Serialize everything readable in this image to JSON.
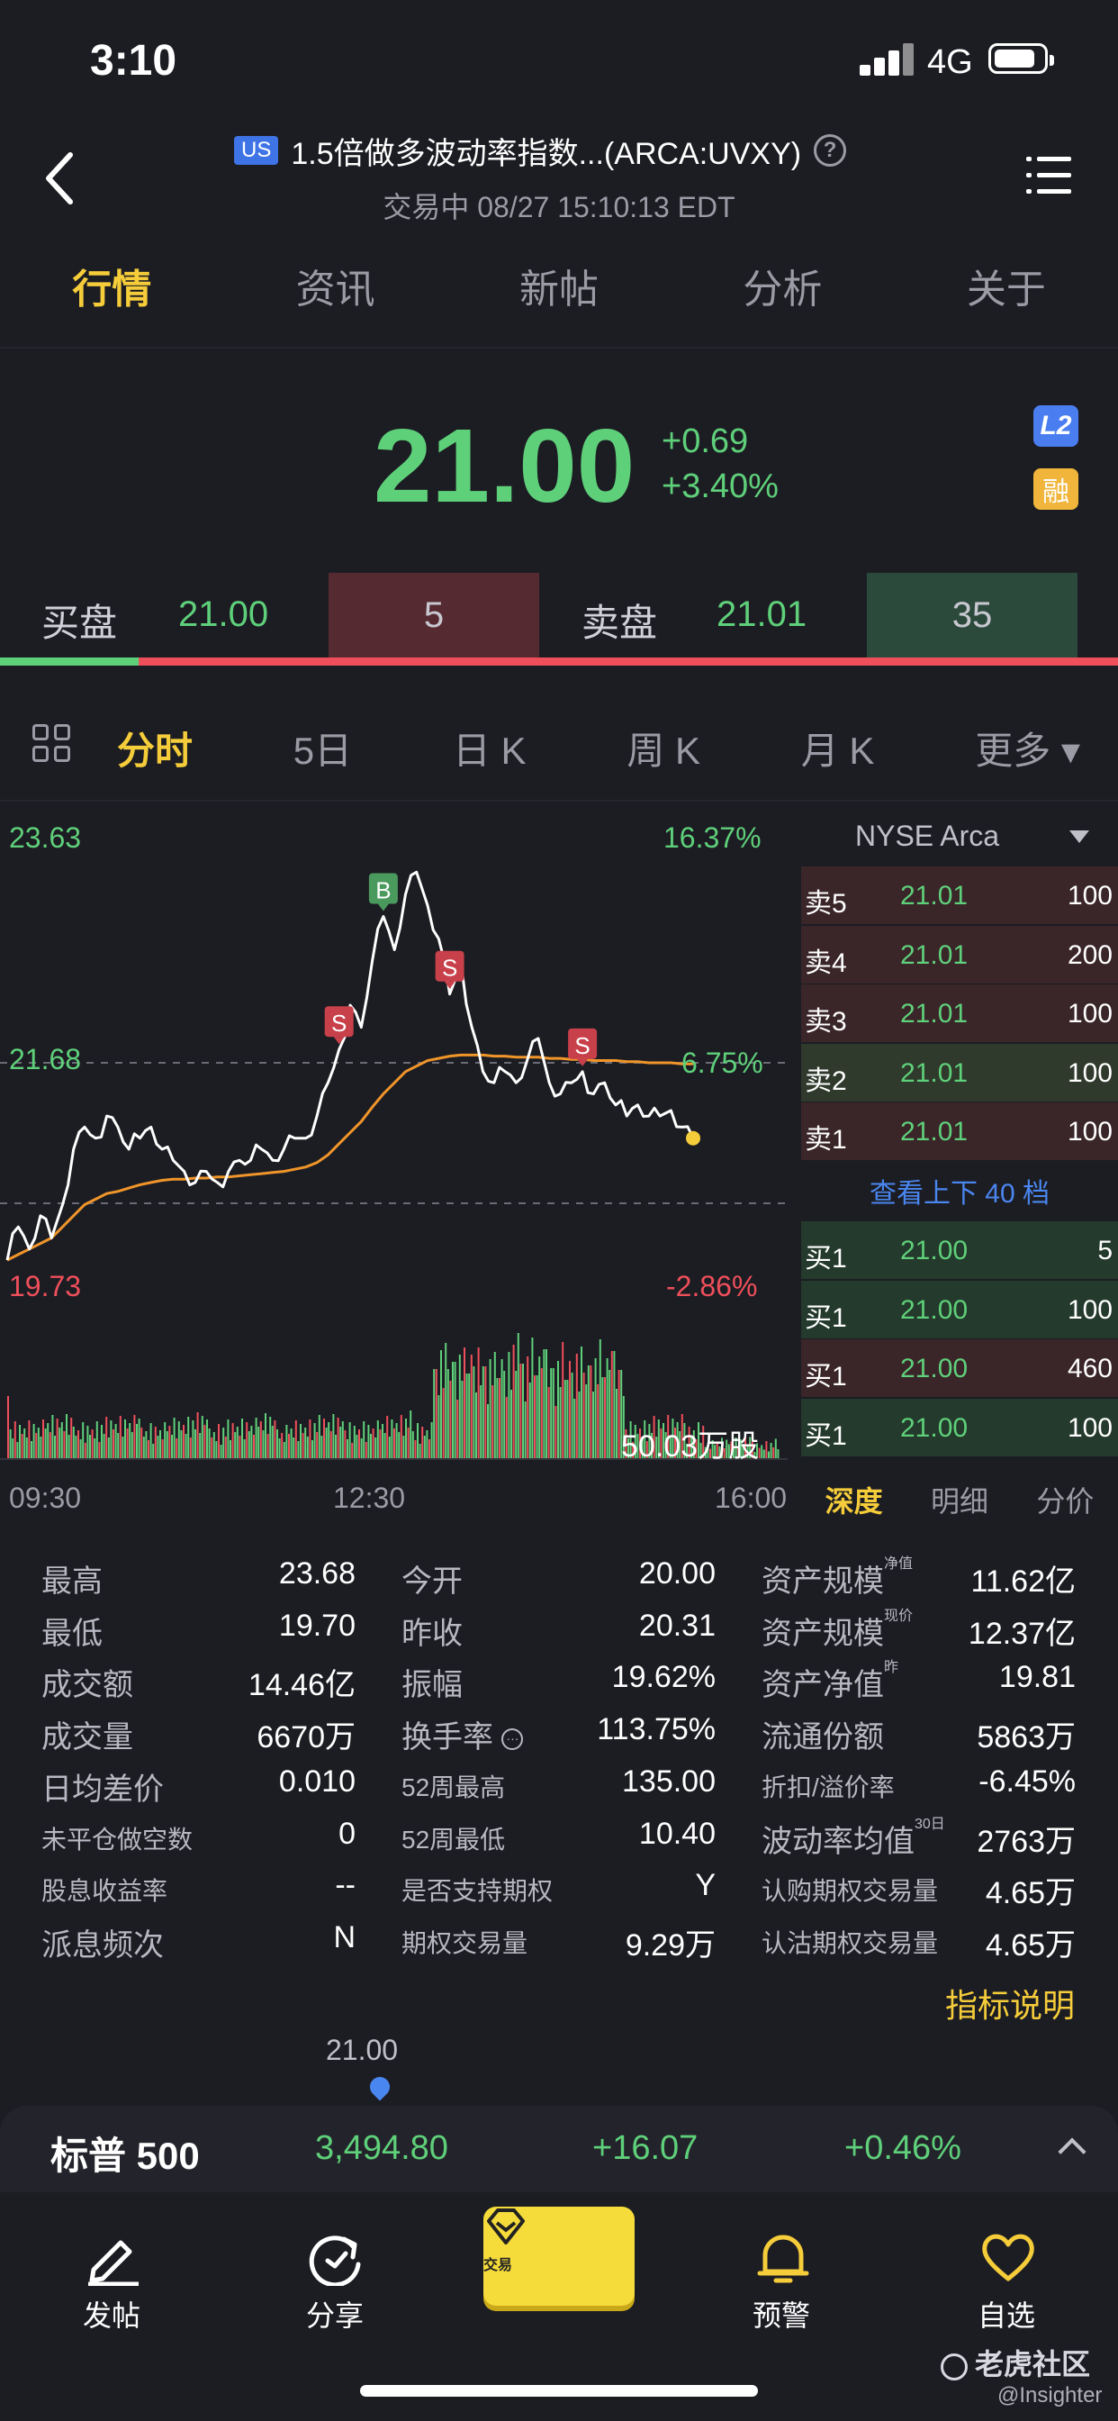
{
  "status_bar": {
    "time": "3:10",
    "network": "4G"
  },
  "header": {
    "market_badge": "US",
    "title": "1.5倍做多波动率指数...(ARCA:UVXY)",
    "subtitle": "交易中 08/27 15:10:13 EDT"
  },
  "tabs": [
    {
      "label": "行情",
      "active": true
    },
    {
      "label": "资讯",
      "active": false
    },
    {
      "label": "新帖",
      "active": false
    },
    {
      "label": "分析",
      "active": false
    },
    {
      "label": "关于",
      "active": false
    }
  ],
  "quote": {
    "price": "21.00",
    "change": "+0.69",
    "change_pct": "+3.40%",
    "badge_l2": "L2",
    "badge_margin": "融"
  },
  "bid_ask": {
    "bid_label": "买盘",
    "bid_price": "21.00",
    "bid_qty": "5",
    "ask_label": "卖盘",
    "ask_price": "21.01",
    "ask_qty": "35",
    "bid_ratio": 0.124
  },
  "chart_tabs": [
    {
      "label": "分时",
      "active": true
    },
    {
      "label": "5日",
      "active": false
    },
    {
      "label": "日 K",
      "active": false
    },
    {
      "label": "周 K",
      "active": false
    },
    {
      "label": "月 K",
      "active": false
    },
    {
      "label": "更多 ▾",
      "active": false
    }
  ],
  "chart_data": {
    "type": "line",
    "ylim": [
      19.73,
      23.63
    ],
    "y_labels": {
      "high": "23.63",
      "mid": "21.68",
      "low": "19.73"
    },
    "pct_labels": {
      "high": "16.37%",
      "mid": "6.75%",
      "low": "-2.86%"
    },
    "x_labels": [
      "09:30",
      "12:30",
      "16:00"
    ],
    "volume_label": "50.03万股",
    "price_series": [
      19.9,
      20.2,
      20.0,
      20.3,
      20.1,
      20.4,
      20.9,
      21.1,
      21.0,
      21.2,
      21.1,
      20.9,
      21.0,
      21.1,
      20.9,
      20.8,
      20.7,
      20.6,
      20.7,
      20.6,
      20.7,
      20.8,
      20.8,
      20.9,
      20.8,
      20.9,
      21.0,
      21.0,
      21.2,
      21.5,
      21.8,
      22.2,
      22.0,
      22.6,
      23.0,
      22.7,
      23.2,
      23.4,
      23.1,
      22.8,
      22.3,
      22.6,
      22.0,
      21.6,
      21.5,
      21.6,
      21.5,
      21.7,
      21.9,
      21.5,
      21.4,
      21.5,
      21.6,
      21.4,
      21.5,
      21.3,
      21.2,
      21.3,
      21.2,
      21.2,
      21.25,
      21.1,
      21.0
    ],
    "avg_series": [
      19.9,
      19.95,
      20.0,
      20.05,
      20.1,
      20.2,
      20.3,
      20.4,
      20.45,
      20.5,
      20.52,
      20.55,
      20.58,
      20.6,
      20.62,
      20.63,
      20.63,
      20.64,
      20.64,
      20.65,
      20.65,
      20.66,
      20.67,
      20.68,
      20.69,
      20.7,
      20.72,
      20.74,
      20.78,
      20.85,
      20.95,
      21.05,
      21.15,
      21.28,
      21.4,
      21.5,
      21.6,
      21.65,
      21.7,
      21.72,
      21.74,
      21.75,
      21.75,
      21.75,
      21.74,
      21.74,
      21.73,
      21.73,
      21.73,
      21.72,
      21.72,
      21.71,
      21.71,
      21.7,
      21.7,
      21.7,
      21.69,
      21.69,
      21.68,
      21.68,
      21.68,
      21.67,
      21.67
    ],
    "trade_markers": [
      {
        "label": "B",
        "index": 34,
        "color": "#4a9a5e"
      },
      {
        "label": "S",
        "index": 30,
        "color": "#c8404a"
      },
      {
        "label": "S",
        "index": 40,
        "color": "#c8404a"
      },
      {
        "label": "S",
        "index": 52,
        "color": "#c8404a"
      }
    ]
  },
  "order_book": {
    "exchange": "NYSE Arca",
    "asks": [
      {
        "label": "卖5",
        "price": "21.01",
        "qty": "100"
      },
      {
        "label": "卖4",
        "price": "21.01",
        "qty": "200"
      },
      {
        "label": "卖3",
        "price": "21.01",
        "qty": "100"
      },
      {
        "label": "卖2",
        "price": "21.01",
        "qty": "100"
      },
      {
        "label": "卖1",
        "price": "21.01",
        "qty": "100"
      }
    ],
    "more_label": "查看上下 40 档",
    "bids": [
      {
        "label": "买1",
        "price": "21.00",
        "qty": "5"
      },
      {
        "label": "买1",
        "price": "21.00",
        "qty": "100"
      },
      {
        "label": "买1",
        "price": "21.00",
        "qty": "460"
      },
      {
        "label": "买1",
        "price": "21.00",
        "qty": "100"
      }
    ],
    "tabs": [
      "深度",
      "明细",
      "分价"
    ]
  },
  "stats": {
    "col1": [
      {
        "label": "最高",
        "value": "23.68"
      },
      {
        "label": "最低",
        "value": "19.70"
      },
      {
        "label": "成交额",
        "value": "14.46亿"
      },
      {
        "label": "成交量",
        "value": "6670万"
      },
      {
        "label": "日均差价",
        "value": "0.010"
      },
      {
        "label": "未平仓做空数",
        "value": "0"
      },
      {
        "label": "股息收益率",
        "value": "--"
      },
      {
        "label": "派息频次",
        "value": "N"
      }
    ],
    "col2": [
      {
        "label": "今开",
        "value": "20.00"
      },
      {
        "label": "昨收",
        "value": "20.31"
      },
      {
        "label": "振幅",
        "value": "19.62%"
      },
      {
        "label": "换手率",
        "value": "113.75%"
      },
      {
        "label": "52周最高",
        "value": "135.00"
      },
      {
        "label": "52周最低",
        "value": "10.40"
      },
      {
        "label": "是否支持期权",
        "value": "Y"
      },
      {
        "label": "期权交易量",
        "value": "9.29万"
      }
    ],
    "col3": [
      {
        "label": "资产规模",
        "sup": "净值",
        "value": "11.62亿"
      },
      {
        "label": "资产规模",
        "sup": "现价",
        "value": "12.37亿"
      },
      {
        "label": "资产净值",
        "sup": "昨",
        "value": "19.81"
      },
      {
        "label": "流通份额",
        "sup": "",
        "value": "5863万"
      },
      {
        "label": "折扣/溢价率",
        "sup": "",
        "value": "-6.45%"
      },
      {
        "label": "波动率均值",
        "sup": "30日",
        "value": "2763万"
      },
      {
        "label": "认购期权交易量",
        "sup": "",
        "value": "4.65万"
      },
      {
        "label": "认沽期权交易量",
        "sup": "",
        "value": "4.65万"
      }
    ],
    "indicator_link": "指标说明"
  },
  "marker_price": "21.00",
  "index_bar": {
    "name": "标普 500",
    "value": "3,494.80",
    "change": "+16.07",
    "change_pct": "+0.46%"
  },
  "bottom_nav": [
    {
      "label": "发帖",
      "icon": "pen-icon"
    },
    {
      "label": "分享",
      "icon": "share-icon"
    },
    {
      "label": "交易",
      "icon": "trade-icon"
    },
    {
      "label": "预警",
      "icon": "bell-icon"
    },
    {
      "label": "自选",
      "icon": "heart-icon"
    }
  ],
  "watermark": {
    "brand": "老虎社区",
    "user": "@Insighter"
  }
}
